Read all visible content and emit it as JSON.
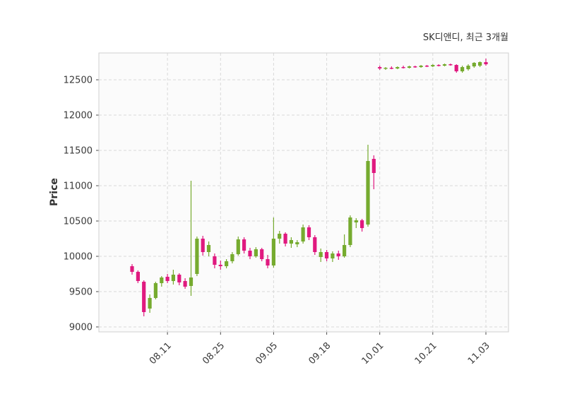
{
  "chart_data": {
    "type": "candlestick",
    "title": "SK디앤디, 최근 3개월",
    "ylabel": "Price",
    "xlabel": "",
    "legend": "none",
    "grid": "dashed, both axes",
    "ylim": [
      8930,
      12880
    ],
    "yticks": [
      9000,
      9500,
      10000,
      10500,
      11000,
      11500,
      12000,
      12500
    ],
    "xticks": [
      {
        "index": 6,
        "label": "08.11"
      },
      {
        "index": 15,
        "label": "08.25"
      },
      {
        "index": 24,
        "label": "09.05"
      },
      {
        "index": 33,
        "label": "09.18"
      },
      {
        "index": 42,
        "label": "10.01"
      },
      {
        "index": 51,
        "label": "10.21"
      },
      {
        "index": 60,
        "label": "11.03"
      }
    ],
    "colors": {
      "up": "#76ab2f",
      "down": "#e0197f",
      "gridline": "#d9d9d9",
      "text": "#3a3a3a",
      "plot_bg": "#fbfbfb",
      "border": "#cfcfcf"
    },
    "candles": {
      "columns": [
        "date",
        "open",
        "high",
        "low",
        "close"
      ],
      "rows": [
        [
          "08.01",
          9860,
          9890,
          9740,
          9780
        ],
        [
          "08.04",
          9780,
          9800,
          9620,
          9650
        ],
        [
          "08.05",
          9640,
          9660,
          9150,
          9210
        ],
        [
          "08.06",
          9260,
          9460,
          9200,
          9410
        ],
        [
          "08.07",
          9410,
          9640,
          9390,
          9620
        ],
        [
          "08.08",
          9620,
          9720,
          9570,
          9700
        ],
        [
          "08.11",
          9710,
          9750,
          9620,
          9650
        ],
        [
          "08.12",
          9650,
          9810,
          9600,
          9740
        ],
        [
          "08.13",
          9740,
          9760,
          9590,
          9630
        ],
        [
          "08.14",
          9650,
          9690,
          9540,
          9570
        ],
        [
          "08.18",
          9580,
          11070,
          9440,
          9700
        ],
        [
          "08.19",
          9750,
          10280,
          9720,
          10250
        ],
        [
          "08.20",
          10250,
          10290,
          10010,
          10060
        ],
        [
          "08.21",
          10060,
          10210,
          10000,
          10160
        ],
        [
          "08.22",
          10000,
          10040,
          9830,
          9880
        ],
        [
          "08.25",
          9880,
          9940,
          9810,
          9860
        ],
        [
          "08.26",
          9860,
          9960,
          9830,
          9930
        ],
        [
          "08.27",
          9930,
          10060,
          9900,
          10030
        ],
        [
          "08.28",
          10030,
          10280,
          10010,
          10240
        ],
        [
          "08.29",
          10240,
          10270,
          10040,
          10080
        ],
        [
          "09.01",
          10080,
          10120,
          9960,
          10000
        ],
        [
          "09.02",
          10000,
          10130,
          9980,
          10100
        ],
        [
          "09.03",
          10100,
          10120,
          9930,
          9960
        ],
        [
          "09.04",
          9960,
          10020,
          9830,
          9870
        ],
        [
          "09.05",
          9870,
          10550,
          9840,
          10250
        ],
        [
          "09.08",
          10250,
          10360,
          10180,
          10320
        ],
        [
          "09.09",
          10320,
          10340,
          10140,
          10180
        ],
        [
          "09.10",
          10180,
          10270,
          10120,
          10230
        ],
        [
          "09.11",
          10170,
          10230,
          10130,
          10200
        ],
        [
          "09.12",
          10210,
          10450,
          10180,
          10410
        ],
        [
          "09.15",
          10410,
          10440,
          10230,
          10270
        ],
        [
          "09.16",
          10270,
          10300,
          10020,
          10060
        ],
        [
          "09.17",
          9990,
          10110,
          9920,
          10060
        ],
        [
          "09.18",
          10060,
          10090,
          9930,
          9970
        ],
        [
          "09.19",
          9970,
          10070,
          9920,
          10040
        ],
        [
          "09.22",
          10040,
          10080,
          9950,
          10000
        ],
        [
          "09.23",
          10000,
          10310,
          9980,
          10160
        ],
        [
          "09.24",
          10160,
          10580,
          10130,
          10550
        ],
        [
          "09.25",
          10480,
          10540,
          10400,
          10510
        ],
        [
          "09.26",
          10510,
          10530,
          10350,
          10400
        ],
        [
          "09.29",
          10450,
          11580,
          10420,
          11350
        ],
        [
          "09.30",
          11380,
          11430,
          10950,
          11180
        ],
        [
          "10.01",
          12680,
          12700,
          12640,
          12660
        ],
        [
          "10.02",
          12660,
          12680,
          12640,
          12670
        ],
        [
          "10.10",
          12670,
          12690,
          12650,
          12660
        ],
        [
          "10.13",
          12660,
          12690,
          12650,
          12680
        ],
        [
          "10.14",
          12680,
          12700,
          12660,
          12670
        ],
        [
          "10.15",
          12670,
          12700,
          12660,
          12690
        ],
        [
          "10.16",
          12690,
          12700,
          12670,
          12680
        ],
        [
          "10.17",
          12680,
          12710,
          12670,
          12700
        ],
        [
          "10.20",
          12700,
          12710,
          12680,
          12690
        ],
        [
          "10.21",
          12690,
          12720,
          12680,
          12710
        ],
        [
          "10.22",
          12710,
          12720,
          12690,
          12700
        ],
        [
          "10.23",
          12700,
          12730,
          12690,
          12720
        ],
        [
          "10.24",
          12720,
          12730,
          12700,
          12710
        ],
        [
          "10.27",
          12710,
          12720,
          12600,
          12620
        ],
        [
          "10.28",
          12620,
          12700,
          12600,
          12680
        ],
        [
          "10.29",
          12650,
          12720,
          12630,
          12700
        ],
        [
          "10.30",
          12690,
          12750,
          12670,
          12740
        ],
        [
          "10.31",
          12700,
          12760,
          12680,
          12750
        ],
        [
          "11.03",
          12750,
          12800,
          12700,
          12720
        ]
      ]
    }
  }
}
